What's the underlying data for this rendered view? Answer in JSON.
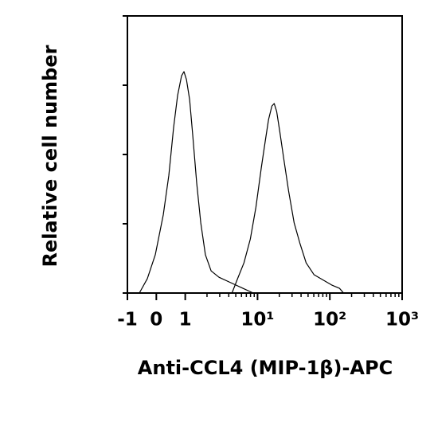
{
  "chart_data": {
    "type": "line",
    "xlabel": "Anti-CCL4 (MIP-1β)-APC",
    "ylabel": "Relative cell number",
    "xscale": "biexponential",
    "xlim": [
      -1,
      1000
    ],
    "xticks": [
      -1,
      0,
      1,
      {
        "value": 10,
        "label": "10¹"
      },
      {
        "value": 100,
        "label": "10²"
      },
      {
        "value": 1000,
        "label": "10³"
      }
    ],
    "xminorticks": [
      2,
      3,
      4,
      5,
      6,
      7,
      8,
      9,
      20,
      30,
      40,
      50,
      60,
      70,
      80,
      90,
      200,
      300,
      400,
      500,
      600,
      700,
      800,
      900
    ],
    "ylim": [
      0,
      100
    ],
    "yticks": [
      0,
      25,
      50,
      75,
      100
    ],
    "series": [
      {
        "color": "#000000",
        "x": [
          -0.587,
          -0.311,
          -0.036,
          0.24,
          0.433,
          0.598,
          0.736,
          0.873,
          0.956,
          1.04,
          1.15,
          1.27,
          1.44,
          1.64,
          1.9,
          2.28,
          2.93,
          4.29,
          6.28,
          8.73
        ],
        "values": [
          0,
          5.2,
          13.8,
          28.2,
          42.5,
          59.8,
          71.3,
          78.4,
          79.9,
          77.0,
          69.8,
          56.9,
          39.7,
          25.3,
          13.8,
          8.0,
          5.7,
          3.7,
          1.7,
          0
        ]
      },
      {
        "color": "#000000",
        "x": [
          4.43,
          5.3,
          6.49,
          7.95,
          9.5,
          11.3,
          12.9,
          14.2,
          15.8,
          17.0,
          18.4,
          20.3,
          23.1,
          26.9,
          32.1,
          38.4,
          47.0,
          60.5,
          82.0,
          106,
          136,
          155
        ],
        "values": [
          0,
          5.2,
          10.9,
          19.5,
          31.0,
          45.4,
          55.5,
          62.6,
          67.5,
          68.4,
          65.5,
          58.3,
          48.3,
          36.8,
          25.3,
          18.1,
          10.9,
          6.6,
          4.6,
          2.9,
          1.7,
          0
        ]
      }
    ]
  }
}
